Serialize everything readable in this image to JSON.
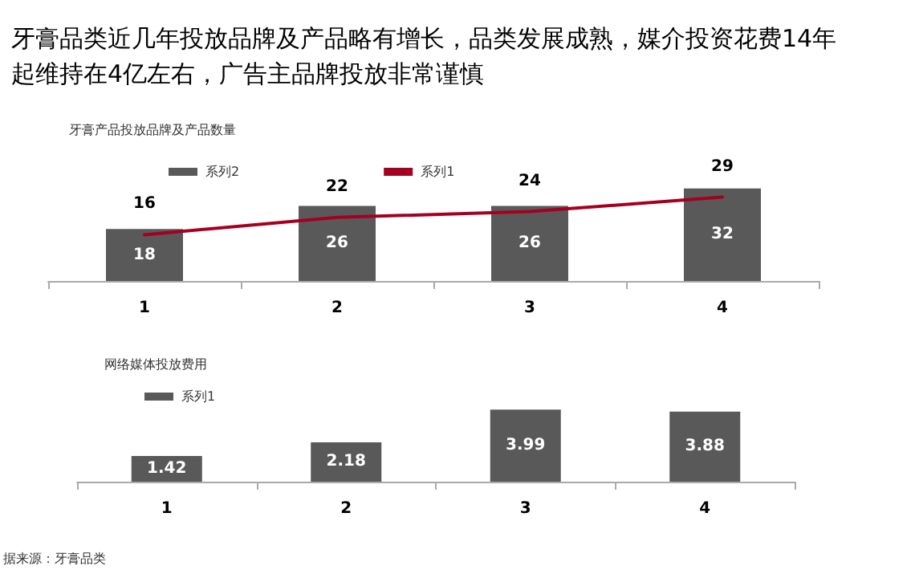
{
  "chart_data": [
    {
      "type": "bar",
      "title": "牙膏品类近几年投放品牌及产品略有增长，品类发展成熟，媒介投资花费14年起维持在4亿左右，广告主品牌投放非常谨慎",
      "subtitle": "牙膏产品投放品牌及产品数量",
      "categories": [
        "1",
        "2",
        "3",
        "4"
      ],
      "series": [
        {
          "name": "系列2",
          "type": "bar",
          "color": "#595959",
          "values": [
            18,
            26,
            26,
            32
          ]
        },
        {
          "name": "系列1",
          "type": "line",
          "color": "#a50021",
          "values": [
            16,
            22,
            24,
            29
          ]
        }
      ],
      "data_labels": true,
      "legend": "top left",
      "grid": false
    },
    {
      "type": "bar",
      "subtitle": "网络媒体投放费用",
      "categories": [
        "1",
        "2",
        "3",
        "4"
      ],
      "series": [
        {
          "name": "系列1",
          "color": "#595959",
          "values": [
            1.42,
            2.18,
            3.99,
            3.88
          ]
        }
      ],
      "data_labels": true,
      "legend": "top left",
      "grid": false,
      "annotations": [
        "据来源：牙膏品类"
      ]
    }
  ]
}
